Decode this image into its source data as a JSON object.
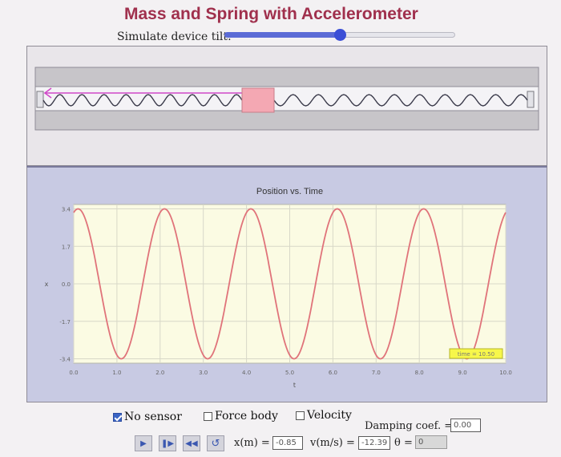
{
  "header": {
    "title": "Mass and Spring with Accelerometer",
    "tilt_label": "Simulate device tilt:",
    "tilt_fraction": 0.5
  },
  "chart_data": {
    "type": "line",
    "title": "Position vs. Time",
    "xlabel": "t",
    "ylabel": "x",
    "xlim": [
      0,
      10
    ],
    "ylim": [
      -3.6,
      3.6
    ],
    "x_ticks": [
      "0.0",
      "1.0",
      "2.0",
      "3.0",
      "4.0",
      "5.0",
      "6.0",
      "7.0",
      "8.0",
      "9.0",
      "10.0"
    ],
    "y_ticks": [
      "3.4",
      "1.7",
      "0.0",
      "-1.7",
      "-3.4"
    ],
    "grid": true,
    "series": [
      {
        "color": "#e0737a",
        "amplitude": 3.4,
        "period": 2.0,
        "phase": 0.1
      }
    ],
    "time_label": "time = 10.50"
  },
  "controls": {
    "no_sensor": {
      "label": "No sensor",
      "checked": true
    },
    "force_body": {
      "label": "Force body",
      "checked": false
    },
    "velocity": {
      "label": "Velocity",
      "checked": false
    },
    "damping_label": "Damping coef. =",
    "damping_value": "0.00",
    "x_label": "x(m) =",
    "x_value": "-0.85",
    "v_label": "v(m/s) =",
    "v_value": "-12.39",
    "theta_label": "θ =",
    "theta_value": "0",
    "buttons": [
      "play",
      "step",
      "rewind",
      "reset"
    ]
  },
  "colors": {
    "title": "#a0304d",
    "mass": "#f4a8b3",
    "spring": "#3a3a4a",
    "pointer": "#d048c8",
    "plot_bg": "#fbfbe3",
    "panel_bg": "#c8cae3"
  }
}
